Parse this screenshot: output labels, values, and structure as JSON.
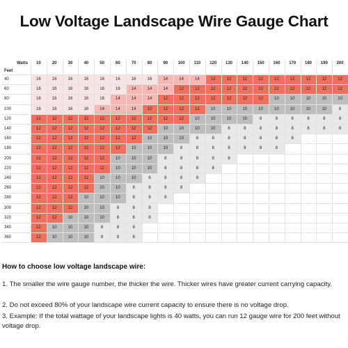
{
  "title": "Low Voltage Landscape Wire Gauge Chart",
  "table": {
    "corner_watts": "Watts",
    "corner_feet": "Feet",
    "watts": [
      "10",
      "20",
      "30",
      "40",
      "50",
      "60",
      "70",
      "80",
      "90",
      "100",
      "110",
      "120",
      "130",
      "140",
      "150",
      "160",
      "170",
      "180",
      "190",
      "200"
    ],
    "rows": [
      {
        "feet": "40",
        "values": [
          "16",
          "16",
          "16",
          "16",
          "16",
          "16",
          "16",
          "16",
          "14",
          "14",
          "14",
          "12",
          "12",
          "12",
          "12",
          "12",
          "12",
          "12",
          "12",
          "12"
        ]
      },
      {
        "feet": "60",
        "values": [
          "16",
          "16",
          "16",
          "16",
          "16",
          "16",
          "14",
          "14",
          "14",
          "12",
          "12",
          "12",
          "12",
          "12",
          "12",
          "12",
          "12",
          "12",
          "12",
          "12"
        ]
      },
      {
        "feet": "80",
        "values": [
          "16",
          "16",
          "16",
          "16",
          "16",
          "14",
          "14",
          "14",
          "12",
          "12",
          "12",
          "12",
          "12",
          "12",
          "12",
          "10",
          "10",
          "10",
          "10",
          "10"
        ]
      },
      {
        "feet": "100",
        "values": [
          "16",
          "16",
          "16",
          "16",
          "14",
          "14",
          "14",
          "12",
          "12",
          "12",
          "12",
          "10",
          "10",
          "10",
          "10",
          "10",
          "10",
          "10",
          "10",
          "8"
        ]
      },
      {
        "feet": "120",
        "values": [
          "12",
          "12",
          "12",
          "12",
          "12",
          "12",
          "12",
          "12",
          "12",
          "12",
          "10",
          "10",
          "10",
          "10",
          "8",
          "8",
          "8",
          "8",
          "8",
          "8"
        ]
      },
      {
        "feet": "140",
        "values": [
          "12",
          "12",
          "12",
          "12",
          "12",
          "12",
          "12",
          "12",
          "10",
          "10",
          "10",
          "10",
          "8",
          "8",
          "8",
          "8",
          "8",
          "8",
          "8",
          "8"
        ]
      },
      {
        "feet": "160",
        "values": [
          "12",
          "12",
          "12",
          "12",
          "12",
          "12",
          "12",
          "10",
          "10",
          "10",
          "8",
          "8",
          "8",
          "8",
          "8",
          "8",
          "8",
          "",
          "",
          ""
        ]
      },
      {
        "feet": "180",
        "values": [
          "12",
          "12",
          "12",
          "12",
          "12",
          "12",
          "10",
          "10",
          "10",
          "8",
          "8",
          "8",
          "8",
          "8",
          "8",
          "8",
          "",
          "",
          "",
          ""
        ]
      },
      {
        "feet": "200",
        "values": [
          "12",
          "12",
          "12",
          "12",
          "12",
          "10",
          "10",
          "10",
          "8",
          "8",
          "8",
          "8",
          "8",
          "",
          "",
          "",
          "",
          "",
          "",
          ""
        ]
      },
      {
        "feet": "220",
        "values": [
          "12",
          "12",
          "12",
          "12",
          "12",
          "10",
          "10",
          "10",
          "8",
          "8",
          "8",
          "8",
          "",
          "",
          "",
          "",
          "",
          "",
          "",
          ""
        ]
      },
      {
        "feet": "240",
        "values": [
          "12",
          "12",
          "12",
          "12",
          "10",
          "10",
          "10",
          "8",
          "8",
          "8",
          "8",
          "",
          "",
          "",
          "",
          "",
          "",
          "",
          "",
          ""
        ]
      },
      {
        "feet": "260",
        "values": [
          "12",
          "12",
          "12",
          "12",
          "10",
          "10",
          "8",
          "8",
          "8",
          "8",
          "",
          "",
          "",
          "",
          "",
          "",
          "",
          "",
          "",
          ""
        ]
      },
      {
        "feet": "280",
        "values": [
          "12",
          "12",
          "12",
          "10",
          "10",
          "10",
          "8",
          "8",
          "8",
          "",
          "",
          "",
          "",
          "",
          "",
          "",
          "",
          "",
          "",
          ""
        ]
      },
      {
        "feet": "300",
        "values": [
          "12",
          "12",
          "12",
          "10",
          "10",
          "8",
          "8",
          "8",
          "",
          "",
          "",
          "",
          "",
          "",
          "",
          "",
          "",
          "",
          "",
          ""
        ]
      },
      {
        "feet": "320",
        "values": [
          "12",
          "12",
          "10",
          "10",
          "10",
          "8",
          "8",
          "8",
          "",
          "",
          "",
          "",
          "",
          "",
          "",
          "",
          "",
          "",
          "",
          ""
        ]
      },
      {
        "feet": "340",
        "values": [
          "12",
          "10",
          "10",
          "10",
          "8",
          "8",
          "8",
          "",
          "",
          "",
          "",
          "",
          "",
          "",
          "",
          "",
          "",
          "",
          "",
          ""
        ]
      },
      {
        "feet": "360",
        "values": [
          "12",
          "10",
          "10",
          "10",
          "8",
          "8",
          "8",
          "",
          "",
          "",
          "",
          "",
          "",
          "",
          "",
          "",
          "",
          "",
          "",
          ""
        ]
      }
    ]
  },
  "colors": {
    "g16": "#f7e5e5",
    "g14": "#f5b8b5",
    "g12": "#f0705f",
    "g10": "#bebebe",
    "g8": "#e8e8e8",
    "empty": "#ffffff"
  },
  "howto": {
    "title": "How to choose low voltage landscape wire:",
    "items": [
      "1. The smaller the wire gauge number, the thicker the wire. Thicker wires have greater current carrying capacity.",
      "2. Do not exceed 80% of your landscape wire current capacity to ensure there is no voltage drop.",
      "3. Example: If the total wattage of your landscape lights is 40 watts, you can run 12 gauge wire for 200 feet without voltage drop."
    ]
  }
}
